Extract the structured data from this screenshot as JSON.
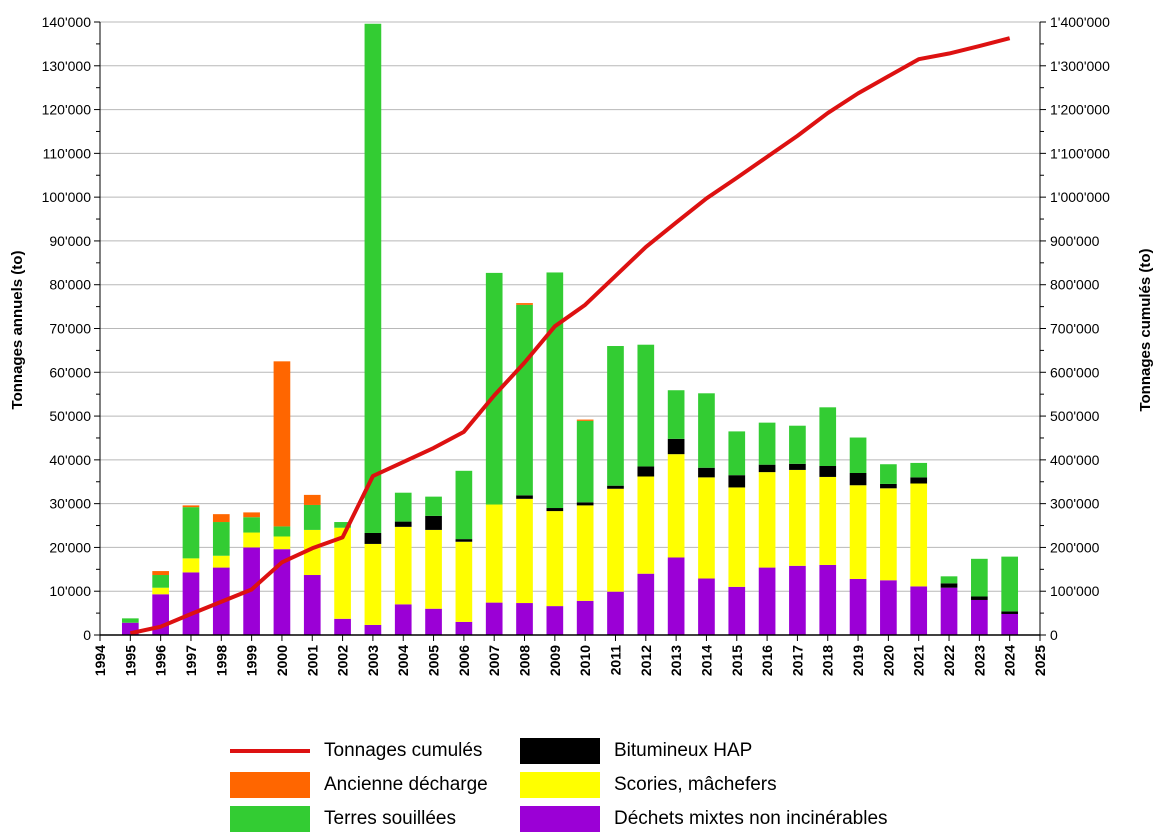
{
  "chart_data": {
    "type": "bar",
    "stacked": true,
    "y_axis": {
      "label": "Tonnages annuels (to)",
      "range": [
        0,
        140000
      ],
      "ticks": [
        "0",
        "10'000",
        "20'000",
        "30'000",
        "40'000",
        "50'000",
        "60'000",
        "70'000",
        "80'000",
        "90'000",
        "100'000",
        "110'000",
        "120'000",
        "130'000",
        "140'000"
      ]
    },
    "y2_axis": {
      "label": "Tonnages cumulés (to)",
      "range": [
        0,
        1400000
      ],
      "ticks": [
        "0",
        "100'000",
        "200'000",
        "300'000",
        "400'000",
        "500'000",
        "600'000",
        "700'000",
        "800'000",
        "900'000",
        "1'000'000",
        "1'100'000",
        "1'200'000",
        "1'300'000",
        "1'400'000"
      ]
    },
    "x_axis": {
      "ticks": [
        "1994",
        "1995",
        "1996",
        "1997",
        "1998",
        "1999",
        "2000",
        "2001",
        "2002",
        "2003",
        "2004",
        "2005",
        "2006",
        "2007",
        "2008",
        "2009",
        "2010",
        "2011",
        "2012",
        "2013",
        "2014",
        "2015",
        "2016",
        "2017",
        "2018",
        "2019",
        "2020",
        "2021",
        "2022",
        "2023",
        "2024",
        "2025"
      ],
      "range": [
        1994,
        2025
      ]
    },
    "grid": true,
    "legend_position": "bottom",
    "categories": [
      1995,
      1996,
      1997,
      1998,
      1999,
      2000,
      2001,
      2002,
      2003,
      2004,
      2005,
      2006,
      2007,
      2008,
      2009,
      2010,
      2011,
      2012,
      2013,
      2014,
      2015,
      2016,
      2017,
      2018,
      2019,
      2020,
      2021,
      2022,
      2023,
      2024
    ],
    "series": [
      {
        "name": "Déchets mixtes non incinérables",
        "color": "#9b00d6",
        "values": [
          2800,
          9300,
          14300,
          15400,
          20000,
          19600,
          13700,
          3700,
          2300,
          7000,
          6000,
          3000,
          7400,
          7300,
          6600,
          7800,
          9900,
          14000,
          17700,
          12900,
          11000,
          15400,
          15800,
          16000,
          12800,
          12500,
          11100,
          10800,
          8000,
          4800
        ]
      },
      {
        "name": "Scories, mâchefers",
        "color": "#ffff00",
        "values": [
          0,
          1500,
          3200,
          2700,
          3400,
          2900,
          10300,
          20800,
          18500,
          17700,
          18000,
          18300,
          22400,
          23800,
          21700,
          21800,
          23500,
          22200,
          23600,
          23100,
          22700,
          21800,
          21900,
          20100,
          21400,
          21000,
          23500,
          0,
          0,
          0
        ]
      },
      {
        "name": "Bitumineux HAP",
        "color": "#000000",
        "values": [
          0,
          0,
          0,
          0,
          0,
          0,
          0,
          0,
          2500,
          1200,
          3200,
          600,
          0,
          800,
          700,
          700,
          700,
          2300,
          3500,
          2200,
          2800,
          1700,
          1400,
          2500,
          2800,
          1000,
          1400,
          1000,
          800,
          600
        ]
      },
      {
        "name": "Terres souillées",
        "color": "#33cc33",
        "values": [
          1000,
          2900,
          11700,
          7700,
          3500,
          2300,
          5700,
          1300,
          116300,
          6600,
          4400,
          15600,
          52900,
          43500,
          53800,
          18600,
          31900,
          27800,
          11100,
          17000,
          10000,
          9600,
          8700,
          13400,
          8100,
          4500,
          3300,
          1600,
          8600,
          12500
        ]
      },
      {
        "name": "Ancienne décharge",
        "color": "#ff6600",
        "values": [
          0,
          900,
          400,
          1800,
          1100,
          37700,
          2300,
          0,
          0,
          0,
          0,
          0,
          0,
          400,
          0,
          300,
          0,
          0,
          0,
          0,
          0,
          0,
          0,
          0,
          0,
          0,
          0,
          0,
          0,
          0
        ]
      }
    ],
    "cumulative": {
      "name": "Tonnages cumulés",
      "color": "#dd1111",
      "values": [
        4000,
        19000,
        48000,
        76000,
        104000,
        166000,
        198000,
        223000,
        363000,
        395000,
        427000,
        464000,
        547000,
        622000,
        705000,
        754000,
        820000,
        886000,
        942000,
        997000,
        1044000,
        1092000,
        1140000,
        1192000,
        1237000,
        1276000,
        1315000,
        1328000,
        1345000,
        1363000
      ]
    },
    "legend": [
      {
        "label": "Tonnages cumulés",
        "color": "#dd1111",
        "kind": "line"
      },
      {
        "label": "Ancienne décharge",
        "color": "#ff6600",
        "kind": "box"
      },
      {
        "label": "Terres souillées",
        "color": "#33cc33",
        "kind": "box"
      },
      {
        "label": "Bitumineux HAP",
        "color": "#000000",
        "kind": "box"
      },
      {
        "label": "Scories, mâchefers",
        "color": "#ffff00",
        "kind": "box"
      },
      {
        "label": "Déchets mixtes non incinérables",
        "color": "#9b00d6",
        "kind": "box"
      }
    ]
  }
}
